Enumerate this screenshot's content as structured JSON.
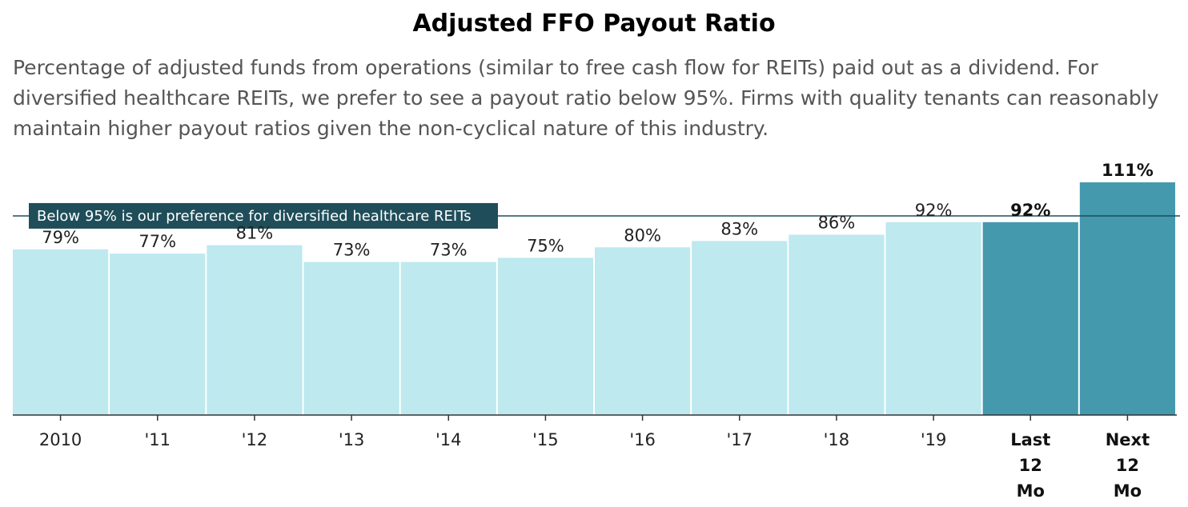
{
  "title": "Adjusted FFO Payout Ratio",
  "subtitle": "Percentage of adjusted funds from operations (similar to free cash flow for REITs) paid out as a dividend. For diversified healthcare REITs, we prefer to see a payout ratio below 95%. Firms with quality tenants can reasonably maintain higher payout ratios given the non-cyclical nature of this industry.",
  "chart_data": {
    "type": "bar",
    "categories": [
      "2010",
      "'11",
      "'12",
      "'13",
      "'14",
      "'15",
      "'16",
      "'17",
      "'18",
      "'19",
      "Last 12 Mo",
      "Next 12 Mo"
    ],
    "tick_lines": [
      [
        "2010"
      ],
      [
        "'11"
      ],
      [
        "'12"
      ],
      [
        "'13"
      ],
      [
        "'14"
      ],
      [
        "'15"
      ],
      [
        "'16"
      ],
      [
        "'17"
      ],
      [
        "'18"
      ],
      [
        "'19"
      ],
      [
        "Last",
        "12",
        "Mo"
      ],
      [
        "Next",
        "12",
        "Mo"
      ]
    ],
    "values": [
      79,
      77,
      81,
      73,
      73,
      75,
      80,
      83,
      86,
      92,
      92,
      111
    ],
    "value_labels": [
      "79%",
      "77%",
      "81%",
      "73%",
      "73%",
      "75%",
      "80%",
      "83%",
      "86%",
      "92%",
      "92%",
      "111%"
    ],
    "highlighted": [
      false,
      false,
      false,
      false,
      false,
      false,
      false,
      false,
      false,
      false,
      true,
      true
    ],
    "reference_line": {
      "value": 95,
      "label": "Below 95% is our preference for diversified healthcare REITs"
    },
    "ylim": [
      0,
      115
    ],
    "grid": false,
    "legend": "none",
    "colors": {
      "bar": "#bde9ef",
      "highlight": "#4499ad",
      "reference": "#1f4e5a",
      "axis": "#333333"
    }
  }
}
